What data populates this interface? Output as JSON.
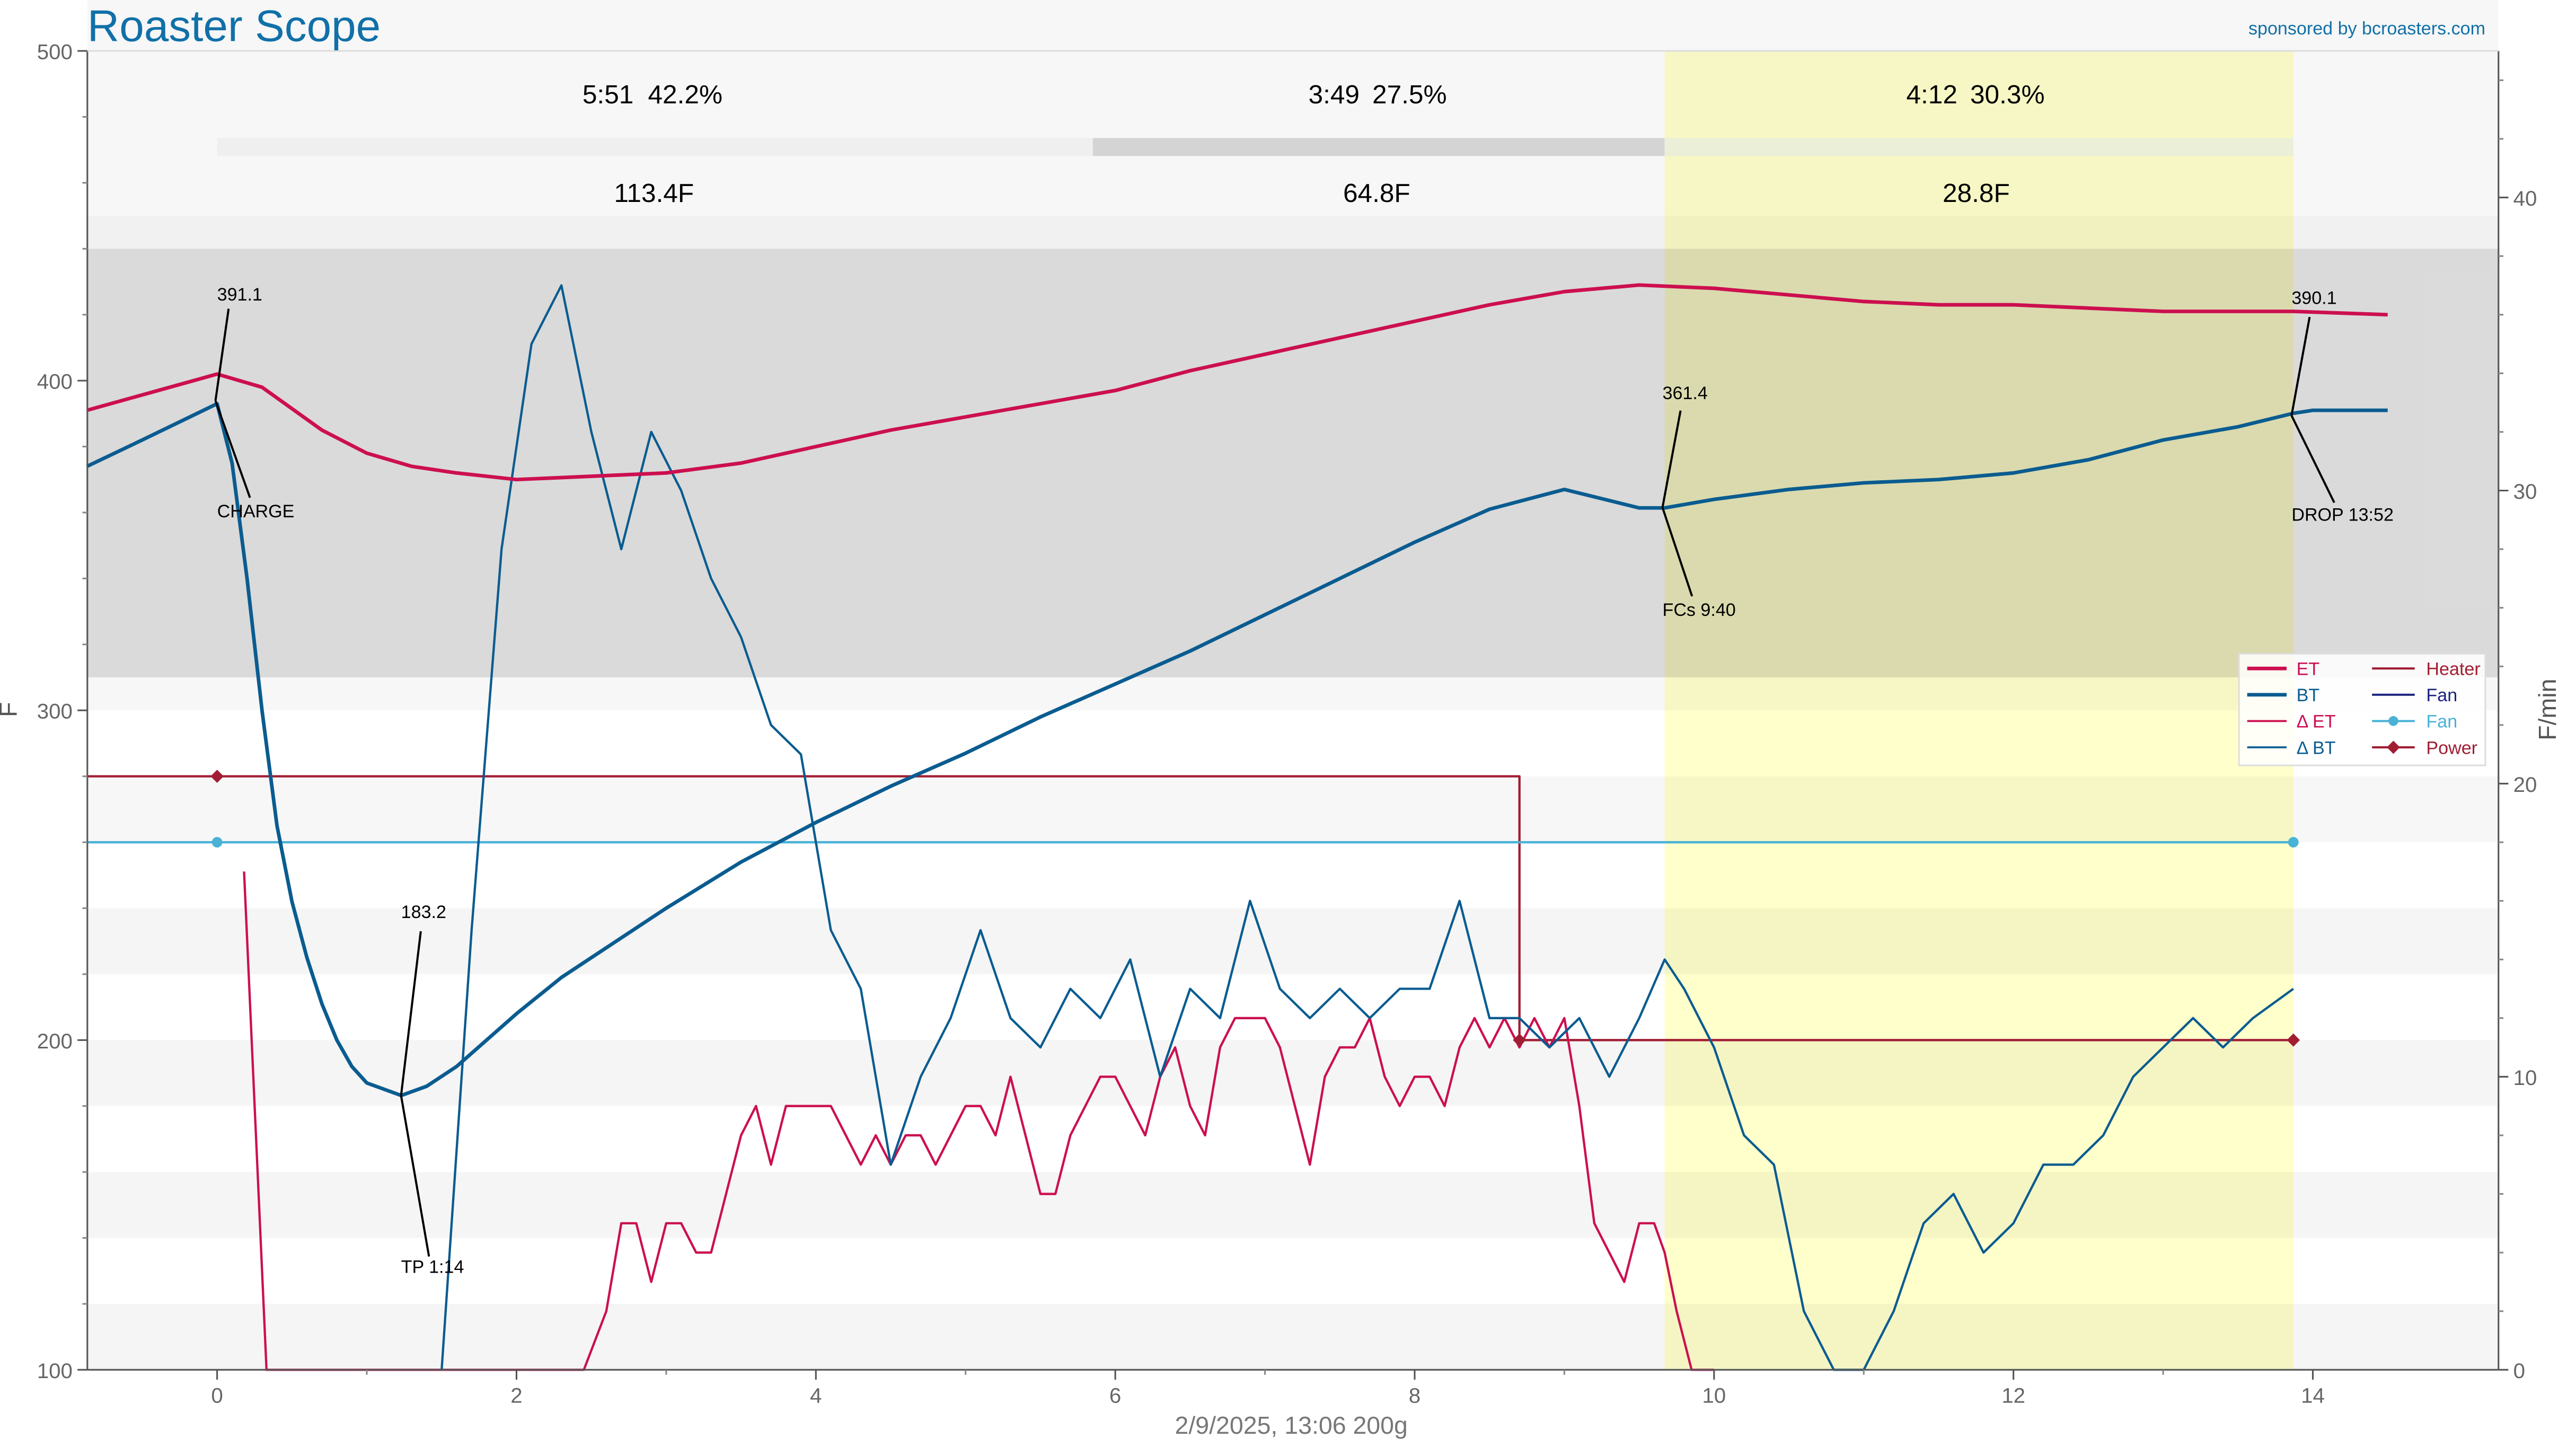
{
  "header": {
    "title": "Roaster Scope",
    "sponsor": "sponsored by bcroasters.com",
    "footer": "2/9/2025, 13:06   200g"
  },
  "phases": [
    {
      "time": "5:51",
      "pct": "42.2%",
      "delta": "113.4F"
    },
    {
      "time": "3:49",
      "pct": "27.5%",
      "delta": "64.8F"
    },
    {
      "time": "4:12",
      "pct": "30.3%",
      "delta": "28.8F"
    }
  ],
  "events": [
    {
      "label": "CHARGE",
      "value": "391.1"
    },
    {
      "label": "TP 1:14",
      "value": "183.2"
    },
    {
      "label": "FCs 9:40",
      "value": "361.4"
    },
    {
      "label": "DROP 13:52",
      "value": "390.1"
    }
  ],
  "legend": {
    "col1": [
      "ET",
      "BT",
      "Δ ET",
      "Δ BT"
    ],
    "col2": [
      "Heater",
      "Fan",
      "Fan",
      "Power"
    ]
  },
  "colors": {
    "et": "#cc0f50",
    "bt": "#0a5c90",
    "fan_cyan": "#49b2d6",
    "heater": "#a11d33",
    "fan_navy": "#1a237e",
    "title": "#1170a8",
    "highlight": "#ffffcc"
  },
  "chart_data": {
    "type": "line",
    "xlabel": "",
    "ylabel": "F",
    "y2label": "F/min",
    "xlim": [
      -0.87,
      15.2
    ],
    "ylim": [
      100,
      500
    ],
    "y2lim": [
      0,
      45
    ],
    "x_ticks": [
      "0",
      "2",
      "4",
      "6",
      "8",
      "10",
      "12",
      "14"
    ],
    "y_ticks": [
      "100",
      "200",
      "300",
      "400",
      "500"
    ],
    "y2_ticks": [
      "0",
      "10",
      "20",
      "30",
      "40"
    ],
    "first_crack_region": [
      9.67,
      13.87
    ],
    "series": [
      {
        "name": "ET",
        "axis": "left",
        "x": [
          -0.87,
          0,
          0.3,
          0.7,
          1.0,
          1.3,
          1.6,
          2.0,
          2.5,
          3.0,
          3.5,
          4.0,
          4.5,
          5.0,
          5.5,
          6.0,
          6.5,
          7.0,
          7.5,
          8.0,
          8.5,
          9.0,
          9.5,
          10.0,
          10.5,
          11.0,
          11.5,
          12.0,
          12.5,
          13.0,
          13.5,
          13.87,
          14.5
        ],
        "y": [
          391,
          402,
          398,
          385,
          378,
          374,
          372,
          370,
          371,
          372,
          375,
          380,
          385,
          389,
          393,
          397,
          403,
          408,
          413,
          418,
          423,
          427,
          429,
          428,
          426,
          424,
          423,
          423,
          422,
          421,
          421,
          421,
          420
        ]
      },
      {
        "name": "BT",
        "axis": "left",
        "x": [
          -0.87,
          -0.5,
          0,
          0.1,
          0.2,
          0.3,
          0.4,
          0.5,
          0.6,
          0.7,
          0.8,
          0.9,
          1.0,
          1.23,
          1.4,
          1.6,
          1.8,
          2.0,
          2.3,
          2.6,
          3.0,
          3.5,
          4.0,
          4.5,
          5.0,
          5.5,
          6.0,
          6.5,
          7.0,
          7.5,
          8.0,
          8.5,
          9.0,
          9.5,
          9.67,
          10.0,
          10.5,
          11.0,
          11.5,
          12.0,
          12.5,
          13.0,
          13.5,
          13.87,
          14.0,
          14.5
        ],
        "y": [
          374,
          382,
          393,
          375,
          340,
          300,
          265,
          242,
          225,
          211,
          200,
          192,
          187,
          183.2,
          186,
          192,
          200,
          208,
          219,
          228,
          240,
          254,
          266,
          277,
          287,
          298,
          308,
          318,
          329,
          340,
          351,
          361,
          367,
          361.4,
          361.4,
          364,
          367,
          369,
          370,
          372,
          376,
          382,
          386,
          390.1,
          391,
          391
        ]
      },
      {
        "name": "Δ ET",
        "axis": "right",
        "x": [
          0.18,
          0.33,
          2.45,
          2.6,
          2.7,
          2.8,
          2.9,
          3.0,
          3.1,
          3.2,
          3.3,
          3.5,
          3.6,
          3.7,
          3.8,
          3.9,
          4.1,
          4.2,
          4.3,
          4.4,
          4.5,
          4.6,
          4.7,
          4.8,
          4.9,
          5.0,
          5.1,
          5.2,
          5.3,
          5.4,
          5.5,
          5.6,
          5.7,
          5.8,
          5.9,
          6.0,
          6.1,
          6.2,
          6.3,
          6.4,
          6.5,
          6.6,
          6.7,
          6.8,
          6.9,
          7.0,
          7.1,
          7.2,
          7.3,
          7.4,
          7.5,
          7.6,
          7.7,
          7.8,
          7.9,
          8.0,
          8.1,
          8.2,
          8.3,
          8.4,
          8.5,
          8.6,
          8.7,
          8.8,
          8.9,
          9.0,
          9.1,
          9.2,
          9.3,
          9.4,
          9.5,
          9.6,
          9.67,
          9.75,
          9.85,
          10.0
        ],
        "y": [
          17,
          0,
          0,
          2,
          5,
          5,
          3,
          5,
          5,
          4,
          4,
          8,
          9,
          7,
          9,
          9,
          9,
          8,
          7,
          8,
          7,
          8,
          8,
          7,
          8,
          9,
          9,
          8,
          10,
          8,
          6,
          6,
          8,
          9,
          10,
          10,
          9,
          8,
          10,
          11,
          9,
          8,
          11,
          12,
          12,
          12,
          11,
          9,
          7,
          10,
          11,
          11,
          12,
          10,
          9,
          10,
          10,
          9,
          11,
          12,
          11,
          12,
          11,
          12,
          11,
          12,
          9,
          5,
          4,
          3,
          5,
          5,
          4,
          2,
          0,
          0
        ]
      },
      {
        "name": "Δ BT",
        "axis": "right",
        "x": [
          1.5,
          1.7,
          1.9,
          2.1,
          2.3,
          2.5,
          2.7,
          2.9,
          3.1,
          3.3,
          3.5,
          3.7,
          3.9,
          4.1,
          4.3,
          4.5,
          4.7,
          4.9,
          5.1,
          5.3,
          5.5,
          5.7,
          5.9,
          6.1,
          6.3,
          6.5,
          6.7,
          6.9,
          7.1,
          7.3,
          7.5,
          7.7,
          7.9,
          8.1,
          8.3,
          8.5,
          8.7,
          8.9,
          9.1,
          9.3,
          9.5,
          9.67,
          9.8,
          10.0,
          10.2,
          10.4,
          10.6,
          10.8,
          11.0,
          11.2,
          11.4,
          11.6,
          11.8,
          12.0,
          12.2,
          12.4,
          12.6,
          12.8,
          13.0,
          13.2,
          13.4,
          13.6,
          13.87
        ],
        "y": [
          0,
          15,
          28,
          35,
          37,
          32,
          28,
          32,
          30,
          27,
          25,
          22,
          21,
          15,
          13,
          7,
          10,
          12,
          15,
          12,
          11,
          13,
          12,
          14,
          10,
          13,
          12,
          16,
          13,
          12,
          13,
          12,
          13,
          13,
          16,
          12,
          12,
          11,
          12,
          10,
          12,
          14,
          13,
          11,
          8,
          7,
          2,
          0,
          0,
          2,
          5,
          6,
          4,
          5,
          7,
          7,
          8,
          10,
          11,
          12,
          11,
          12,
          13
        ]
      },
      {
        "name": "Heater",
        "axis": "left",
        "step": true,
        "x": [
          -0.87,
          8.7,
          8.7,
          13.87
        ],
        "y": [
          280,
          280,
          200,
          200
        ]
      },
      {
        "name": "Fan",
        "axis": "left",
        "x": [
          -0.87,
          13.87
        ],
        "y": [
          260,
          260
        ],
        "markers": [
          0,
          13.87
        ]
      },
      {
        "name": "Power",
        "axis": "left",
        "x": [
          0,
          8.7,
          13.87
        ],
        "y": [
          280,
          200,
          200
        ]
      }
    ]
  }
}
